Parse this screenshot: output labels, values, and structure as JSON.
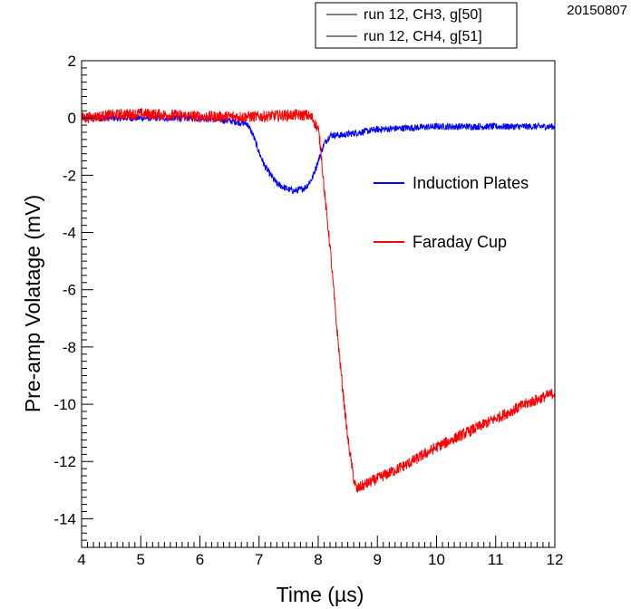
{
  "chart_data": {
    "type": "line",
    "date_label": "20150807",
    "xlabel": "Time (µs)",
    "ylabel": "Pre-amp Volatage (mV)",
    "xlim": [
      4,
      12
    ],
    "ylim": [
      -15,
      2
    ],
    "xticks": [
      4,
      5,
      6,
      7,
      8,
      9,
      10,
      11,
      12
    ],
    "yticks": [
      2,
      0,
      -2,
      -4,
      -6,
      -8,
      -10,
      -12,
      -14
    ],
    "grid": false,
    "legend": {
      "placement": "top-right-outside",
      "entries": [
        "run 12, CH3, g[50]",
        "run 12, CH4, g[51]"
      ]
    },
    "annotations": [
      {
        "text": "Induction Plates",
        "color": "#0000ff"
      },
      {
        "text": "Faraday Cup",
        "color": "#ff0000"
      }
    ],
    "series": [
      {
        "color": "#0000ff",
        "noise": 0.12,
        "x": [
          4.0,
          4.5,
          5.0,
          5.5,
          6.0,
          6.5,
          6.8,
          6.9,
          7.0,
          7.1,
          7.2,
          7.3,
          7.4,
          7.5,
          7.6,
          7.7,
          7.8,
          7.9,
          8.0,
          8.1,
          8.2,
          8.4,
          8.7,
          9.0,
          10.0,
          11.0,
          12.0
        ],
        "y": [
          0.0,
          0.0,
          0.0,
          0.0,
          0.0,
          -0.1,
          -0.2,
          -0.6,
          -1.2,
          -1.7,
          -2.0,
          -2.3,
          -2.4,
          -2.5,
          -2.55,
          -2.5,
          -2.4,
          -2.1,
          -1.5,
          -0.9,
          -0.6,
          -0.6,
          -0.5,
          -0.4,
          -0.3,
          -0.3,
          -0.3
        ]
      },
      {
        "color": "#ff0000",
        "noise": 0.2,
        "x": [
          4.0,
          4.5,
          5.0,
          5.5,
          6.0,
          6.5,
          7.0,
          7.5,
          7.8,
          7.9,
          8.0,
          8.05,
          8.1,
          8.2,
          8.3,
          8.4,
          8.5,
          8.6,
          8.65,
          8.7,
          8.8,
          9.0,
          9.5,
          10.0,
          10.5,
          11.0,
          11.5,
          12.0
        ],
        "y": [
          0.0,
          0.1,
          0.15,
          0.1,
          0.05,
          0.05,
          0.05,
          0.1,
          0.1,
          0.0,
          -0.4,
          -1.2,
          -2.5,
          -4.5,
          -7.0,
          -9.2,
          -11.2,
          -12.6,
          -13.0,
          -12.9,
          -12.8,
          -12.6,
          -12.1,
          -11.5,
          -11.0,
          -10.5,
          -10.0,
          -9.6
        ]
      }
    ]
  }
}
